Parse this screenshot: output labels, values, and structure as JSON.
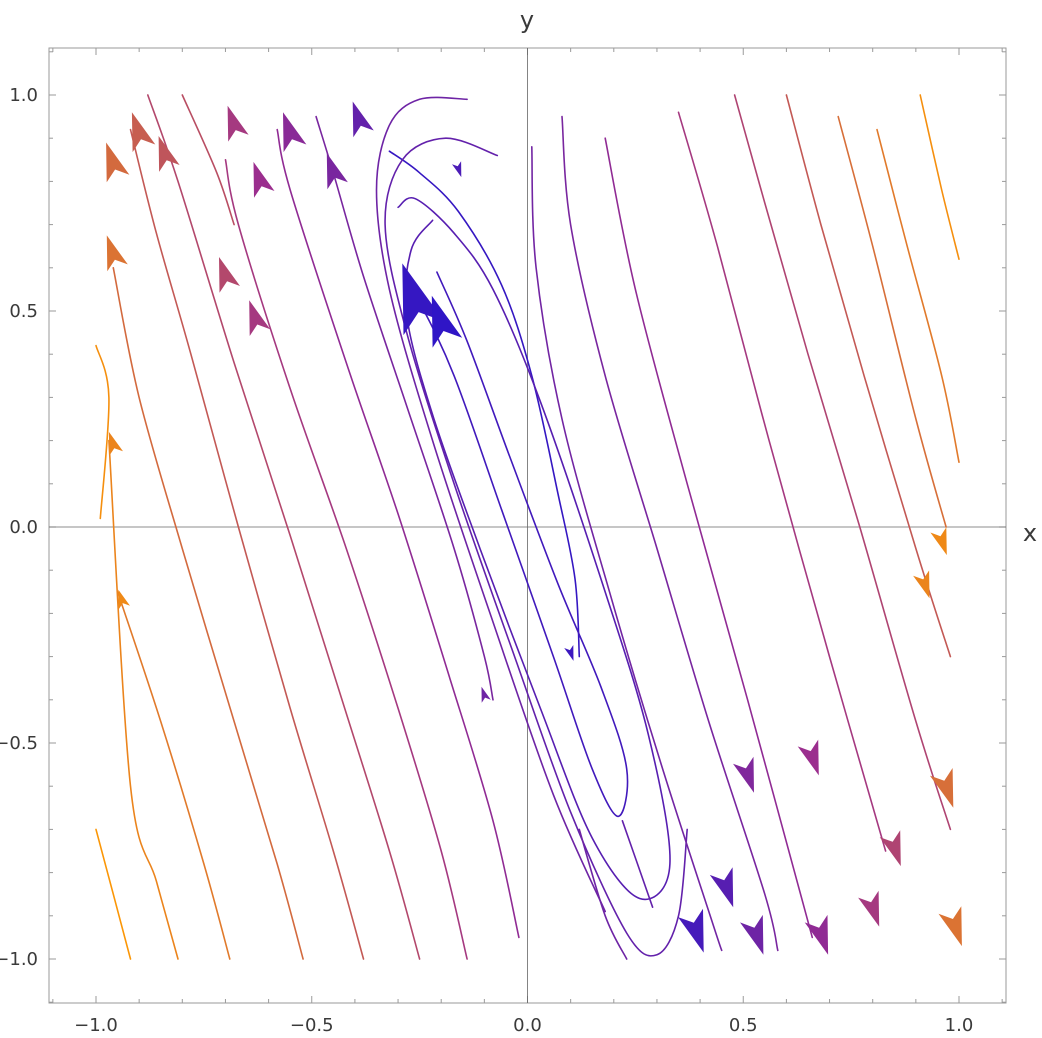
{
  "chart_data": {
    "type": "streamplot",
    "title": "",
    "xlabel": "x",
    "ylabel": "y",
    "xlim": [
      -1.1,
      1.1
    ],
    "ylim": [
      -1.1,
      1.1
    ],
    "x_ticks": [
      -1.0,
      -0.5,
      0.0,
      0.5,
      1.0
    ],
    "y_ticks": [
      -1.0,
      -0.5,
      0.0,
      0.5,
      1.0
    ],
    "x_tick_labels": [
      "-1.0",
      "-0.5",
      "0.0",
      "0.5",
      "1.0"
    ],
    "y_tick_labels": [
      "-1.0",
      "-0.5",
      "0.0",
      "0.5",
      "1.0"
    ],
    "grid": false,
    "color_scale": {
      "low": "#2a14c8",
      "mid": "#9b2e8e",
      "high": "#ff9a00",
      "meaning": "speed"
    },
    "streamlines": [
      {
        "points": [
          [
            0.12,
            -0.3
          ],
          [
            0.11,
            -0.12
          ],
          [
            0.07,
            0.08
          ],
          [
            0.01,
            0.35
          ],
          [
            -0.06,
            0.56
          ],
          [
            -0.16,
            0.73
          ],
          [
            -0.25,
            0.82
          ],
          [
            -0.32,
            0.87
          ]
        ],
        "speed": 0.05
      },
      {
        "points": [
          [
            -0.21,
            0.59
          ],
          [
            -0.14,
            0.43
          ],
          [
            -0.04,
            0.16
          ],
          [
            0.07,
            -0.13
          ],
          [
            0.17,
            -0.37
          ],
          [
            0.23,
            -0.56
          ],
          [
            0.21,
            -0.67
          ],
          [
            0.15,
            -0.56
          ],
          [
            0.06,
            -0.3
          ],
          [
            -0.06,
            0.04
          ],
          [
            -0.17,
            0.35
          ],
          [
            -0.25,
            0.52
          ],
          [
            -0.28,
            0.56
          ]
        ],
        "speed": 0.1
      },
      {
        "points": [
          [
            -0.22,
            0.71
          ],
          [
            -0.27,
            0.64
          ],
          [
            -0.28,
            0.49
          ],
          [
            -0.22,
            0.26
          ],
          [
            -0.11,
            -0.05
          ],
          [
            0.03,
            -0.42
          ],
          [
            0.15,
            -0.72
          ],
          [
            0.26,
            -0.86
          ],
          [
            0.33,
            -0.78
          ],
          [
            0.28,
            -0.48
          ],
          [
            0.17,
            -0.12
          ],
          [
            0.03,
            0.29
          ],
          [
            -0.08,
            0.55
          ],
          [
            -0.17,
            0.68
          ],
          [
            -0.26,
            0.76
          ],
          [
            -0.3,
            0.74
          ]
        ],
        "speed": 0.2
      },
      {
        "points": [
          [
            -0.07,
            0.86
          ],
          [
            -0.19,
            0.9
          ],
          [
            -0.29,
            0.85
          ],
          [
            -0.33,
            0.7
          ],
          [
            -0.28,
            0.45
          ],
          [
            -0.17,
            0.1
          ],
          [
            -0.03,
            -0.3
          ],
          [
            0.1,
            -0.66
          ],
          [
            0.23,
            -0.94
          ],
          [
            0.3,
            -0.99
          ],
          [
            0.35,
            -0.9
          ],
          [
            0.37,
            -0.7
          ]
        ],
        "speed": 0.25
      },
      {
        "points": [
          [
            -0.14,
            0.99
          ],
          [
            -0.25,
            0.99
          ],
          [
            -0.32,
            0.93
          ],
          [
            -0.35,
            0.78
          ],
          [
            -0.32,
            0.55
          ],
          [
            -0.22,
            0.2
          ],
          [
            -0.08,
            -0.22
          ],
          [
            0.06,
            -0.62
          ],
          [
            0.18,
            -0.89
          ]
        ],
        "speed": 0.3
      },
      {
        "points": [
          [
            0.12,
            -0.7
          ],
          [
            0.18,
            -0.9
          ],
          [
            0.23,
            -1.0
          ]
        ],
        "speed": 0.3
      },
      {
        "points": [
          [
            0.22,
            -0.68
          ],
          [
            0.29,
            -0.88
          ]
        ],
        "speed": 0.25
      },
      {
        "points": [
          [
            0.08,
            0.95
          ],
          [
            0.1,
            0.7
          ],
          [
            0.18,
            0.35
          ],
          [
            0.3,
            -0.05
          ],
          [
            0.42,
            -0.45
          ],
          [
            0.55,
            -0.85
          ],
          [
            0.58,
            -0.98
          ]
        ],
        "speed": 0.35
      },
      {
        "points": [
          [
            0.01,
            0.88
          ],
          [
            0.02,
            0.6
          ],
          [
            0.08,
            0.25
          ],
          [
            0.19,
            -0.15
          ],
          [
            0.31,
            -0.55
          ],
          [
            0.43,
            -0.92
          ],
          [
            0.45,
            -0.98
          ]
        ],
        "speed": 0.32
      },
      {
        "points": [
          [
            0.18,
            0.9
          ],
          [
            0.25,
            0.55
          ],
          [
            0.37,
            0.1
          ],
          [
            0.51,
            -0.4
          ],
          [
            0.66,
            -0.95
          ]
        ],
        "speed": 0.45
      },
      {
        "points": [
          [
            0.35,
            0.96
          ],
          [
            0.44,
            0.65
          ],
          [
            0.56,
            0.2
          ],
          [
            0.7,
            -0.3
          ],
          [
            0.83,
            -0.75
          ]
        ],
        "speed": 0.55
      },
      {
        "points": [
          [
            0.48,
            1.0
          ],
          [
            0.55,
            0.75
          ],
          [
            0.65,
            0.4
          ],
          [
            0.77,
            0.0
          ],
          [
            0.9,
            -0.45
          ],
          [
            0.98,
            -0.7
          ]
        ],
        "speed": 0.6
      },
      {
        "points": [
          [
            0.6,
            1.0
          ],
          [
            0.68,
            0.7
          ],
          [
            0.78,
            0.35
          ],
          [
            0.9,
            -0.05
          ],
          [
            0.98,
            -0.3
          ]
        ],
        "speed": 0.7
      },
      {
        "points": [
          [
            0.72,
            0.95
          ],
          [
            0.8,
            0.65
          ],
          [
            0.9,
            0.25
          ],
          [
            0.97,
            0.0
          ]
        ],
        "speed": 0.8
      },
      {
        "points": [
          [
            0.81,
            0.92
          ],
          [
            0.88,
            0.65
          ],
          [
            0.96,
            0.35
          ],
          [
            1.0,
            0.15
          ]
        ],
        "speed": 0.85
      },
      {
        "points": [
          [
            0.91,
            1.0
          ],
          [
            0.96,
            0.78
          ],
          [
            1.0,
            0.62
          ]
        ],
        "speed": 0.95
      },
      {
        "points": [
          [
            -0.08,
            -0.4
          ],
          [
            -0.1,
            -0.3
          ],
          [
            -0.17,
            -0.05
          ],
          [
            -0.28,
            0.28
          ],
          [
            -0.38,
            0.58
          ],
          [
            -0.45,
            0.82
          ],
          [
            -0.49,
            0.95
          ]
        ],
        "speed": 0.35
      },
      {
        "points": [
          [
            -0.02,
            -0.95
          ],
          [
            -0.08,
            -0.68
          ],
          [
            -0.18,
            -0.35
          ],
          [
            -0.3,
            0.03
          ],
          [
            -0.42,
            0.38
          ],
          [
            -0.55,
            0.78
          ],
          [
            -0.58,
            0.92
          ]
        ],
        "speed": 0.45
      },
      {
        "points": [
          [
            -0.14,
            -1.0
          ],
          [
            -0.2,
            -0.75
          ],
          [
            -0.3,
            -0.42
          ],
          [
            -0.42,
            -0.05
          ],
          [
            -0.55,
            0.32
          ],
          [
            -0.67,
            0.7
          ],
          [
            -0.7,
            0.85
          ]
        ],
        "speed": 0.55
      },
      {
        "points": [
          [
            -0.25,
            -1.0
          ],
          [
            -0.32,
            -0.75
          ],
          [
            -0.43,
            -0.4
          ],
          [
            -0.55,
            -0.02
          ],
          [
            -0.68,
            0.38
          ],
          [
            -0.81,
            0.8
          ],
          [
            -0.88,
            1.0
          ]
        ],
        "speed": 0.62
      },
      {
        "points": [
          [
            -0.38,
            -1.0
          ],
          [
            -0.45,
            -0.75
          ],
          [
            -0.55,
            -0.42
          ],
          [
            -0.67,
            0.0
          ],
          [
            -0.78,
            0.4
          ],
          [
            -0.86,
            0.68
          ],
          [
            -0.92,
            0.92
          ]
        ],
        "speed": 0.7
      },
      {
        "points": [
          [
            -0.52,
            -1.0
          ],
          [
            -0.58,
            -0.78
          ],
          [
            -0.68,
            -0.45
          ],
          [
            -0.8,
            -0.05
          ],
          [
            -0.9,
            0.3
          ],
          [
            -0.96,
            0.6
          ]
        ],
        "speed": 0.78
      },
      {
        "points": [
          [
            -0.69,
            -1.0
          ],
          [
            -0.75,
            -0.78
          ],
          [
            -0.85,
            -0.45
          ],
          [
            -0.95,
            -0.15
          ]
        ],
        "speed": 0.85
      },
      {
        "points": [
          [
            -0.81,
            -1.0
          ],
          [
            -0.86,
            -0.82
          ],
          [
            -0.92,
            -0.6
          ],
          [
            -0.97,
            0.2
          ]
        ],
        "speed": 0.9
      },
      {
        "points": [
          [
            -0.92,
            -1.0
          ],
          [
            -0.96,
            -0.85
          ],
          [
            -1.0,
            -0.7
          ]
        ],
        "speed": 0.98
      },
      {
        "points": [
          [
            -0.99,
            0.02
          ],
          [
            -0.97,
            0.3
          ],
          [
            -1.0,
            0.42
          ]
        ],
        "speed": 0.95
      },
      {
        "points": [
          [
            -0.68,
            0.7
          ],
          [
            -0.72,
            0.82
          ],
          [
            -0.8,
            1.0
          ]
        ],
        "speed": 0.65
      }
    ],
    "arrows": [
      {
        "x": -0.26,
        "y": 0.52,
        "dx": -0.1,
        "dy": 0.3,
        "speed": 0.05,
        "size": 1.8
      },
      {
        "x": -0.2,
        "y": 0.47,
        "dx": -0.1,
        "dy": 0.3,
        "speed": 0.02,
        "size": 1.3
      },
      {
        "x": -0.39,
        "y": 0.94,
        "dx": -0.1,
        "dy": 0.3,
        "speed": 0.25,
        "size": 0.9
      },
      {
        "x": -0.45,
        "y": 0.82,
        "dx": -0.1,
        "dy": 0.3,
        "speed": 0.35,
        "size": 0.9
      },
      {
        "x": -0.55,
        "y": 0.91,
        "dx": -0.1,
        "dy": 0.3,
        "speed": 0.42,
        "size": 1.0
      },
      {
        "x": -0.62,
        "y": 0.8,
        "dx": -0.1,
        "dy": 0.3,
        "speed": 0.5,
        "size": 0.9
      },
      {
        "x": -0.68,
        "y": 0.93,
        "dx": -0.1,
        "dy": 0.3,
        "speed": 0.55,
        "size": 0.9
      },
      {
        "x": -0.84,
        "y": 0.86,
        "dx": -0.1,
        "dy": 0.3,
        "speed": 0.68,
        "size": 0.9
      },
      {
        "x": -0.9,
        "y": 0.91,
        "dx": -0.1,
        "dy": 0.3,
        "speed": 0.72,
        "size": 1.0
      },
      {
        "x": -0.96,
        "y": 0.84,
        "dx": -0.1,
        "dy": 0.3,
        "speed": 0.78,
        "size": 1.0
      },
      {
        "x": -0.96,
        "y": 0.63,
        "dx": -0.1,
        "dy": 0.3,
        "speed": 0.82,
        "size": 0.9
      },
      {
        "x": -0.7,
        "y": 0.58,
        "dx": -0.1,
        "dy": 0.3,
        "speed": 0.62,
        "size": 0.9
      },
      {
        "x": -0.63,
        "y": 0.48,
        "dx": -0.1,
        "dy": 0.3,
        "speed": 0.55,
        "size": 0.9
      },
      {
        "x": -0.96,
        "y": 0.19,
        "dx": -0.1,
        "dy": 0.3,
        "speed": 0.9,
        "size": 0.6
      },
      {
        "x": -0.94,
        "y": -0.17,
        "dx": -0.1,
        "dy": 0.3,
        "speed": 0.92,
        "size": 0.5
      },
      {
        "x": -0.1,
        "y": -0.39,
        "dx": -0.1,
        "dy": 0.3,
        "speed": 0.3,
        "size": 0.4
      },
      {
        "x": 0.1,
        "y": -0.29,
        "dx": 0.1,
        "dy": -0.3,
        "speed": 0.08,
        "size": 0.4
      },
      {
        "x": 0.39,
        "y": -0.93,
        "dx": 0.1,
        "dy": -0.3,
        "speed": 0.12,
        "size": 1.1
      },
      {
        "x": 0.46,
        "y": -0.83,
        "dx": 0.1,
        "dy": -0.3,
        "speed": 0.2,
        "size": 1.0
      },
      {
        "x": 0.53,
        "y": -0.94,
        "dx": 0.1,
        "dy": -0.3,
        "speed": 0.3,
        "size": 1.0
      },
      {
        "x": 0.51,
        "y": -0.57,
        "dx": 0.1,
        "dy": -0.3,
        "speed": 0.38,
        "size": 0.9
      },
      {
        "x": 0.66,
        "y": -0.53,
        "dx": 0.1,
        "dy": -0.3,
        "speed": 0.5,
        "size": 0.9
      },
      {
        "x": 0.68,
        "y": -0.94,
        "dx": 0.1,
        "dy": -0.3,
        "speed": 0.45,
        "size": 1.0
      },
      {
        "x": 0.8,
        "y": -0.88,
        "dx": 0.1,
        "dy": -0.3,
        "speed": 0.55,
        "size": 0.9
      },
      {
        "x": 0.85,
        "y": -0.74,
        "dx": 0.1,
        "dy": -0.3,
        "speed": 0.6,
        "size": 0.9
      },
      {
        "x": 0.97,
        "y": -0.6,
        "dx": 0.1,
        "dy": -0.3,
        "speed": 0.8,
        "size": 1.0
      },
      {
        "x": 0.99,
        "y": -0.92,
        "dx": 0.1,
        "dy": -0.3,
        "speed": 0.82,
        "size": 1.0
      },
      {
        "x": 0.92,
        "y": -0.13,
        "dx": 0.1,
        "dy": -0.3,
        "speed": 0.9,
        "size": 0.7
      },
      {
        "x": 0.96,
        "y": -0.03,
        "dx": 0.1,
        "dy": -0.3,
        "speed": 0.92,
        "size": 0.7
      },
      {
        "x": -0.16,
        "y": 0.83,
        "dx": 0.1,
        "dy": -0.3,
        "speed": 0.15,
        "size": 0.4
      }
    ]
  }
}
